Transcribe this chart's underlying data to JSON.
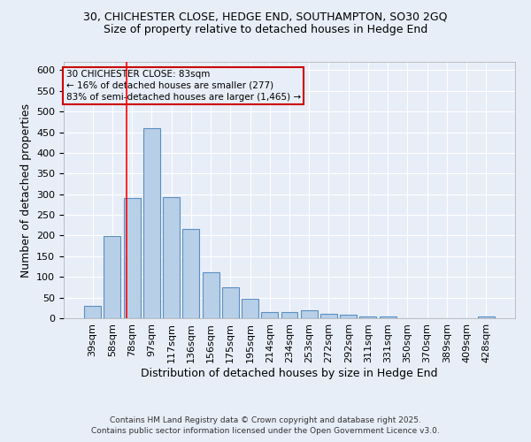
{
  "title1": "30, CHICHESTER CLOSE, HEDGE END, SOUTHAMPTON, SO30 2GQ",
  "title2": "Size of property relative to detached houses in Hedge End",
  "xlabel": "Distribution of detached houses by size in Hedge End",
  "ylabel": "Number of detached properties",
  "bar_labels": [
    "39sqm",
    "58sqm",
    "78sqm",
    "97sqm",
    "117sqm",
    "136sqm",
    "156sqm",
    "175sqm",
    "195sqm",
    "214sqm",
    "234sqm",
    "253sqm",
    "272sqm",
    "292sqm",
    "311sqm",
    "331sqm",
    "350sqm",
    "370sqm",
    "389sqm",
    "409sqm",
    "428sqm"
  ],
  "bar_values": [
    30,
    198,
    290,
    460,
    293,
    217,
    112,
    75,
    47,
    14,
    15,
    20,
    11,
    8,
    5,
    5,
    0,
    0,
    0,
    0,
    5
  ],
  "bar_color": "#b8cfe8",
  "bar_edge_color": "#5a8fc2",
  "background_color": "#e8eef8",
  "grid_color": "#ffffff",
  "annotation_line1": "30 CHICHESTER CLOSE: 83sqm",
  "annotation_line2": "← 16% of detached houses are smaller (277)",
  "annotation_line3": "83% of semi-detached houses are larger (1,465) →",
  "annotation_box_edge_color": "#cc0000",
  "red_line_x": 2.0,
  "ylim": [
    0,
    620
  ],
  "yticks": [
    0,
    50,
    100,
    150,
    200,
    250,
    300,
    350,
    400,
    450,
    500,
    550,
    600
  ],
  "footer1": "Contains HM Land Registry data © Crown copyright and database right 2025.",
  "footer2": "Contains public sector information licensed under the Open Government Licence v3.0.",
  "title_fontsize": 9,
  "xlabel_fontsize": 9,
  "ylabel_fontsize": 9,
  "tick_fontsize": 8,
  "annot_fontsize": 7.5,
  "footer_fontsize": 6.5
}
